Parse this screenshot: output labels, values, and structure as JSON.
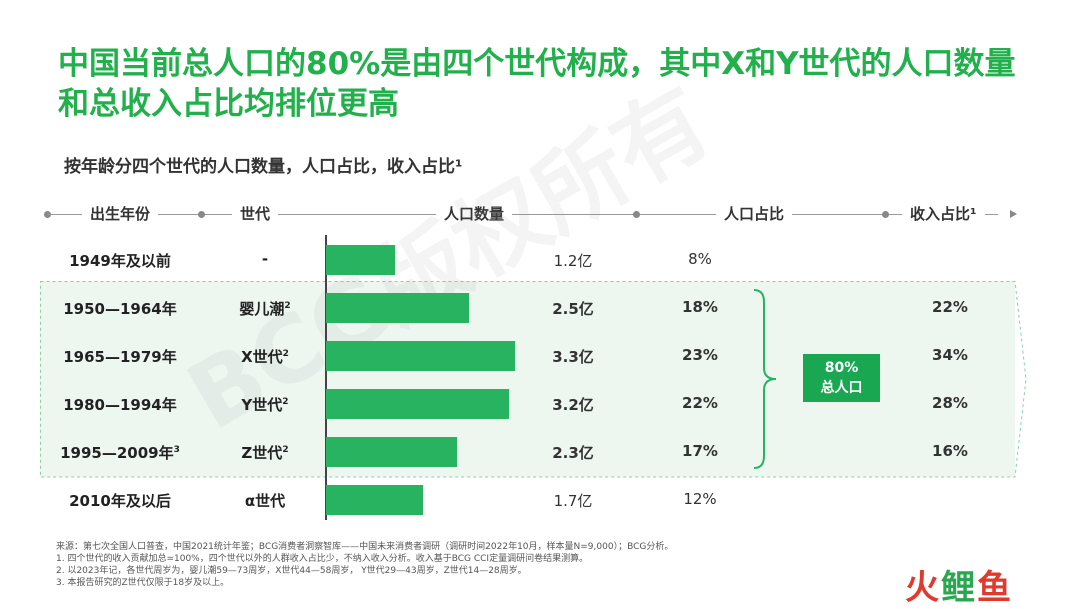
{
  "title": "中国当前总人口的80%是由四个世代构成，其中X和Y世代的人口数量和总收入占比均排位更高",
  "subtitle": "按年龄分四个世代的人口数量，人口占比，收入占比¹",
  "headers": {
    "birth_year": "出生年份",
    "generation": "世代",
    "population": "人口数量",
    "pop_share": "人口占比",
    "income_share": "收入占比¹"
  },
  "rows": [
    {
      "year": "1949年及以前",
      "year_sup": "",
      "gen": "-",
      "gen_sup": "",
      "pop": "1.2亿",
      "share": "8%",
      "income": ""
    },
    {
      "year": "1950—1964年",
      "year_sup": "",
      "gen": "婴儿潮",
      "gen_sup": "2",
      "pop": "2.5亿",
      "share": "18%",
      "income": "22%"
    },
    {
      "year": "1965—1979年",
      "year_sup": "",
      "gen": "X世代",
      "gen_sup": "2",
      "pop": "3.3亿",
      "share": "23%",
      "income": "34%"
    },
    {
      "year": "1980—1994年",
      "year_sup": "",
      "gen": "Y世代",
      "gen_sup": "2",
      "pop": "3.2亿",
      "share": "22%",
      "income": "28%"
    },
    {
      "year": "1995—2009年",
      "year_sup": "3",
      "gen": "Z世代",
      "gen_sup": "2",
      "pop": "2.3亿",
      "share": "17%",
      "income": "16%"
    },
    {
      "year": "2010年及以后",
      "year_sup": "",
      "gen": "α世代",
      "gen_sup": "",
      "pop": "1.7亿",
      "share": "12%",
      "income": ""
    }
  ],
  "badge": {
    "line1": "80%",
    "line2": "总人口"
  },
  "watermark": "BCG版权所有",
  "footnotes": [
    "来源：第七次全国人口普查，中国2021统计年鉴；BCG消费者洞察智库——中国未来消费者调研（调研时间2022年10月，样本量N=9,000）；BCG分析。",
    "1. 四个世代的收入贡献加总=100%，四个世代以外的人群收入占比少，不纳入收入分析。收入基于BCG  CCI定量调研问卷结果测算。",
    "2. 以2023年记，各世代周岁为，婴儿潮59—73周岁，X世代44—58周岁，  Y世代29—43周岁，Z世代14—28周岁。",
    "3. 本报告研究的Z世代仅限于18岁及以上。"
  ],
  "logo": {
    "part1": "火",
    "part2": "鲤",
    "part3": "鱼"
  },
  "colors": {
    "title": "#21b04b",
    "bar": "#27b360",
    "badge": "#1aa752",
    "panel": "#edf7f0"
  },
  "chart_data": {
    "type": "bar",
    "orientation": "horizontal",
    "categories": [
      "1949年及以前",
      "1950—1964年",
      "1965—1979年",
      "1980—1994年",
      "1995—2009年",
      "2010年及以后"
    ],
    "series": [
      {
        "name": "人口数量",
        "values": [
          1.2,
          2.5,
          3.3,
          3.2,
          2.3,
          1.7
        ],
        "unit": "亿"
      }
    ],
    "pop_share": [
      "8%",
      "18%",
      "23%",
      "22%",
      "17%",
      "12%"
    ],
    "income_share": [
      "",
      "22%",
      "34%",
      "28%",
      "16%",
      ""
    ],
    "title": "按年龄分四个世代的人口数量，人口占比，收入占比¹",
    "xlim": [
      0,
      3.5
    ]
  }
}
